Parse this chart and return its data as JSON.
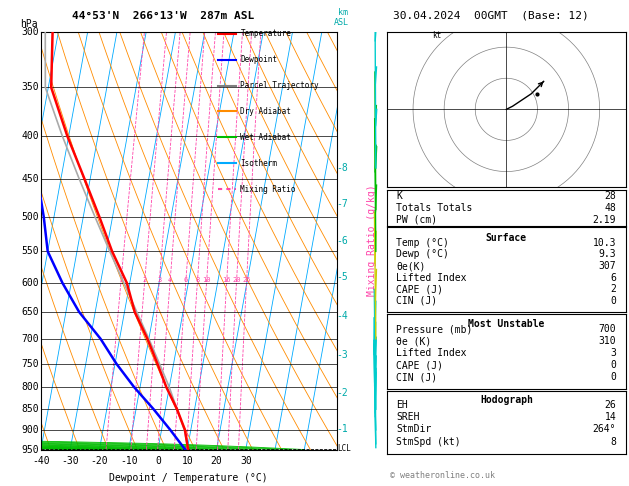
{
  "title_left": "44°53'N  266°13'W  287m ASL",
  "title_right": "30.04.2024  00GMT  (Base: 12)",
  "hpa_label": "hPa",
  "km_label": "km\nASL",
  "xlabel": "Dewpoint / Temperature (°C)",
  "mixing_ratio_label": "Mixing Ratio (g/kg)",
  "pressure_levels": [
    300,
    350,
    400,
    450,
    500,
    550,
    600,
    650,
    700,
    750,
    800,
    850,
    900,
    950
  ],
  "pressure_labels": [
    300,
    350,
    400,
    450,
    500,
    550,
    600,
    650,
    700,
    750,
    800,
    850,
    900,
    950
  ],
  "temp_ticks": [
    -40,
    -30,
    -20,
    -10,
    0,
    10,
    20,
    30
  ],
  "km_ticks": [
    1,
    2,
    3,
    4,
    5,
    6,
    7,
    8
  ],
  "km_pressures": [
    898,
    813,
    732,
    657,
    590,
    535,
    483,
    437
  ],
  "mixing_ratio_lines": [
    1,
    2,
    3,
    4,
    6,
    8,
    10,
    16,
    20,
    25
  ],
  "legend_items": [
    {
      "label": "Temperature",
      "color": "#ff0000",
      "style": "solid"
    },
    {
      "label": "Dewpoint",
      "color": "#0000ff",
      "style": "solid"
    },
    {
      "label": "Parcel Trajectory",
      "color": "#808080",
      "style": "solid"
    },
    {
      "label": "Dry Adiabat",
      "color": "#ff8c00",
      "style": "solid"
    },
    {
      "label": "Wet Adiabat",
      "color": "#00bb00",
      "style": "solid"
    },
    {
      "label": "Isotherm",
      "color": "#00aaff",
      "style": "solid"
    },
    {
      "label": "Mixing Ratio",
      "color": "#ff44aa",
      "style": "dashed"
    }
  ],
  "stats_K": "28",
  "stats_TT": "48",
  "stats_PW": "2.19",
  "surf_temp": "10.3",
  "surf_dewp": "9.3",
  "surf_thetae": "307",
  "surf_li": "6",
  "surf_cape": "2",
  "surf_cin": "0",
  "mu_pressure": "700",
  "mu_thetae": "310",
  "mu_li": "3",
  "mu_cape": "0",
  "mu_cin": "0",
  "hodo_eh": "26",
  "hodo_sreh": "14",
  "hodo_stmdir": "264°",
  "hodo_stmspd": "8",
  "temp_profile_p": [
    950,
    900,
    850,
    800,
    750,
    700,
    650,
    600,
    550,
    500,
    450,
    400,
    350,
    300
  ],
  "temp_profile_t": [
    10.3,
    8.0,
    4.0,
    -1.0,
    -5.5,
    -10.5,
    -16.5,
    -21.0,
    -28.0,
    -34.5,
    -42.0,
    -50.5,
    -59.0,
    -62.0
  ],
  "dewp_profile_p": [
    950,
    900,
    850,
    800,
    750,
    700,
    650,
    600,
    550,
    500,
    450,
    400,
    350,
    300
  ],
  "dewp_profile_t": [
    9.3,
    3.0,
    -4.0,
    -12.0,
    -19.5,
    -26.5,
    -35.5,
    -43.0,
    -50.0,
    -53.5,
    -58.0,
    -63.5,
    -70.0,
    -73.0
  ],
  "parcel_profile_p": [
    950,
    900,
    850,
    800,
    750,
    700,
    650,
    600,
    550,
    500,
    450,
    400,
    350,
    300
  ],
  "parcel_profile_t": [
    10.3,
    7.8,
    4.0,
    0.0,
    -4.8,
    -10.0,
    -15.8,
    -22.0,
    -28.8,
    -36.0,
    -43.8,
    -52.2,
    -61.0,
    -64.5
  ],
  "lcl_pressure": 948,
  "skew": 26.0,
  "pmin": 300,
  "pmax": 950,
  "tmin": -40,
  "tmax": 35,
  "bg_color": "#ffffff",
  "isotherm_color": "#00aaff",
  "dryadiabat_color": "#ff8c00",
  "wetadiabat_color": "#00bb00",
  "mixratio_color": "#ff44aa",
  "temp_color": "#ff0000",
  "dewp_color": "#0000ff",
  "parcel_color": "#aaaaaa",
  "font_size": 7,
  "title_font_size": 8,
  "wind_barb_colors_cyan": "#00cccc",
  "wind_barb_colors_green": "#00aa00",
  "wind_barb_colors_yellow": "#cccc00"
}
